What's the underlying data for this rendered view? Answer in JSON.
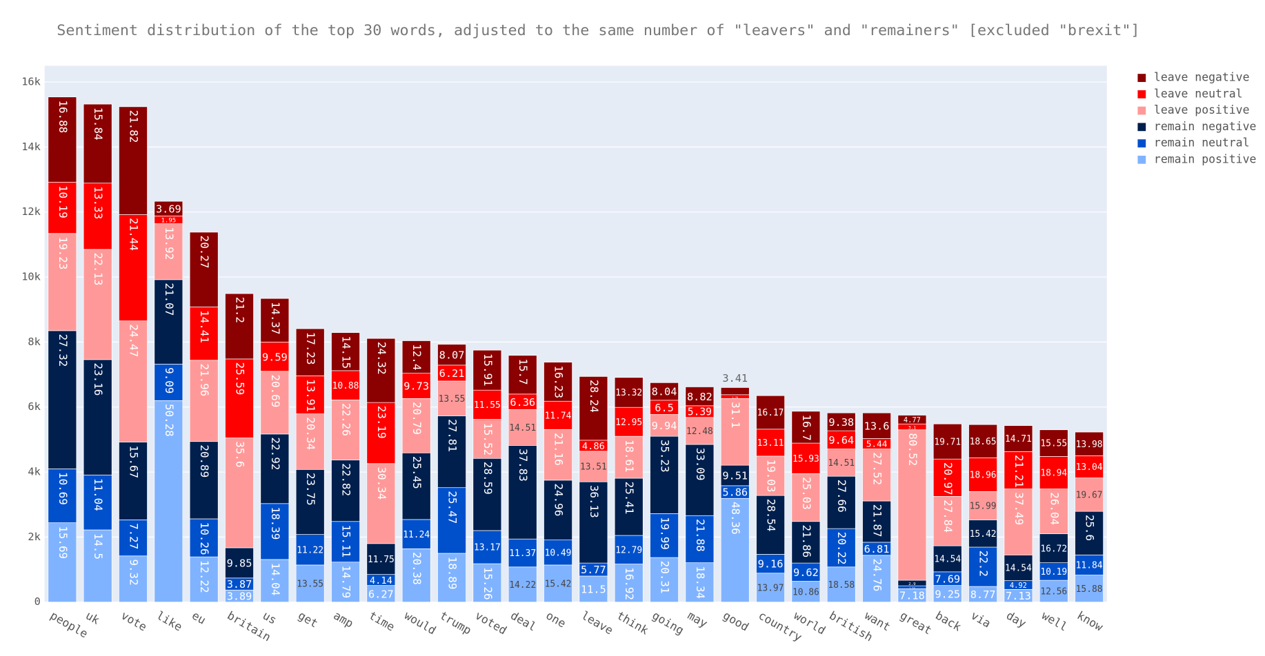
{
  "chart_data": {
    "type": "stacked_bar",
    "title": "Sentiment distribution of the top 30 words, adjusted to the same number of \"leavers\" and \"remainers\" [excluded \"brexit\"]",
    "categories": [
      "people",
      "uk",
      "vote",
      "like",
      "eu",
      "britain",
      "us",
      "get",
      "amp",
      "time",
      "would",
      "trump",
      "voted",
      "deal",
      "one",
      "leave",
      "think",
      "going",
      "may",
      "good",
      "country",
      "world",
      "british",
      "want",
      "great",
      "back",
      "via",
      "day",
      "well",
      "know"
    ],
    "ylim": [
      0,
      16500
    ],
    "yticks": [
      0,
      {
        "value": 2000,
        "label": "2k"
      },
      {
        "value": 4000,
        "label": "4k"
      },
      {
        "value": 6000,
        "label": "6k"
      },
      {
        "value": 8000,
        "label": "8k"
      },
      {
        "value": 10000,
        "label": "10k"
      },
      {
        "value": 12000,
        "label": "12k"
      },
      {
        "value": 14000,
        "label": "14k"
      },
      {
        "value": 16000,
        "label": "16k"
      }
    ],
    "grid": true,
    "legend": "right",
    "series": [
      {
        "name": "remain positive",
        "color": "#80b3ff",
        "values": [
          2440,
          2220,
          1420,
          6200,
          1390,
          370,
          1310,
          1140,
          1230,
          510,
          1640,
          1500,
          1180,
          1080,
          1140,
          800,
          1170,
          1370,
          1210,
          3190,
          890,
          640,
          1080,
          1440,
          410,
          510,
          480,
          390,
          670,
          830
        ],
        "percents": [
          15.69,
          14.5,
          9.32,
          50.28,
          12.22,
          3.89,
          14.04,
          13.55,
          14.79,
          6.27,
          20.38,
          18.89,
          15.26,
          14.22,
          15.42,
          11.5,
          16.92,
          20.31,
          18.34,
          48.36,
          13.97,
          10.86,
          18.58,
          24.76,
          7.18,
          9.25,
          8.77,
          7.13,
          12.56,
          15.88
        ]
      },
      {
        "name": "remain neutral",
        "color": "#0050cc",
        "values": [
          1660,
          1690,
          1110,
          1120,
          1170,
          370,
          1720,
          940,
          1250,
          340,
          900,
          2020,
          1020,
          860,
          770,
          400,
          880,
          1350,
          1450,
          390,
          580,
          560,
          1180,
          400,
          90,
          420,
          1210,
          270,
          540,
          620
        ],
        "percents": [
          10.69,
          11.04,
          7.27,
          9.09,
          10.26,
          3.87,
          18.39,
          11.22,
          15.11,
          4.14,
          11.24,
          25.47,
          13.17,
          11.37,
          10.49,
          5.77,
          12.79,
          19.99,
          21.88,
          5.86,
          9.16,
          9.62,
          20.22,
          6.81,
          1.53,
          7.69,
          22.2,
          4.92,
          10.19,
          11.84
        ]
      },
      {
        "name": "remain negative",
        "color": "#001f4d",
        "values": [
          4250,
          3550,
          2390,
          2600,
          2380,
          930,
          2140,
          2000,
          1890,
          950,
          2050,
          2210,
          2220,
          2880,
          1840,
          2500,
          1760,
          2380,
          2190,
          630,
          1810,
          1280,
          1610,
          1270,
          170,
          800,
          840,
          790,
          890,
          1340
        ],
        "percents": [
          27.32,
          23.16,
          15.67,
          21.07,
          20.89,
          9.85,
          22.92,
          23.75,
          22.82,
          11.75,
          25.45,
          27.81,
          28.59,
          37.83,
          24.96,
          36.13,
          25.41,
          35.23,
          33.09,
          9.51,
          28.54,
          21.86,
          27.66,
          21.87,
          2.9,
          14.54,
          15.42,
          14.54,
          16.72,
          25.6
        ]
      },
      {
        "name": "leave positive",
        "color": "#ff9999",
        "values": [
          2990,
          3390,
          3730,
          1720,
          2500,
          3380,
          1930,
          1710,
          1850,
          2460,
          1670,
          1070,
          1200,
          1100,
          1560,
          940,
          1290,
          670,
          830,
          2050,
          1210,
          1470,
          840,
          1600,
          4630,
          1520,
          870,
          2030,
          1380,
          1030
        ],
        "percents": [
          19.23,
          22.13,
          24.47,
          13.92,
          21.96,
          35.6,
          20.69,
          20.34,
          22.26,
          30.34,
          20.79,
          13.55,
          15.52,
          14.51,
          21.16,
          13.51,
          18.61,
          9.94,
          12.48,
          31.1,
          19.03,
          25.03,
          14.51,
          27.52,
          80.52,
          27.84,
          15.99,
          37.49,
          26.04,
          19.67
        ]
      },
      {
        "name": "leave neutral",
        "color": "#ff0000",
        "values": [
          1580,
          2040,
          3270,
          240,
          1640,
          2430,
          900,
          1170,
          900,
          1880,
          780,
          490,
          900,
          480,
          870,
          340,
          890,
          440,
          360,
          120,
          830,
          940,
          560,
          320,
          180,
          1150,
          1040,
          1150,
          1000,
          680
        ],
        "percents": [
          10.19,
          13.33,
          21.44,
          1.95,
          14.41,
          25.59,
          9.59,
          13.91,
          10.88,
          23.19,
          9.73,
          6.21,
          11.55,
          6.36,
          11.74,
          4.86,
          12.95,
          6.5,
          5.39,
          1.76,
          13.11,
          15.93,
          9.64,
          5.44,
          3.1,
          20.97,
          18.96,
          21.21,
          18.94,
          13.04
        ]
      },
      {
        "name": "leave negative",
        "color": "#8b0000",
        "values": [
          2620,
          2430,
          3320,
          450,
          2300,
          2010,
          1340,
          1450,
          1170,
          1970,
          1000,
          640,
          1230,
          1190,
          1200,
          1960,
          920,
          540,
          580,
          220,
          1030,
          980,
          550,
          790,
          270,
          1080,
          1020,
          800,
          820,
          730
        ],
        "percents": [
          16.88,
          15.84,
          21.82,
          3.69,
          20.27,
          21.2,
          14.37,
          17.23,
          14.15,
          24.32,
          12.4,
          8.07,
          15.91,
          15.7,
          16.23,
          28.24,
          13.32,
          8.04,
          8.82,
          3.41,
          16.17,
          16.7,
          9.38,
          13.6,
          4.77,
          19.71,
          18.65,
          14.71,
          15.55,
          13.98
        ]
      }
    ]
  }
}
